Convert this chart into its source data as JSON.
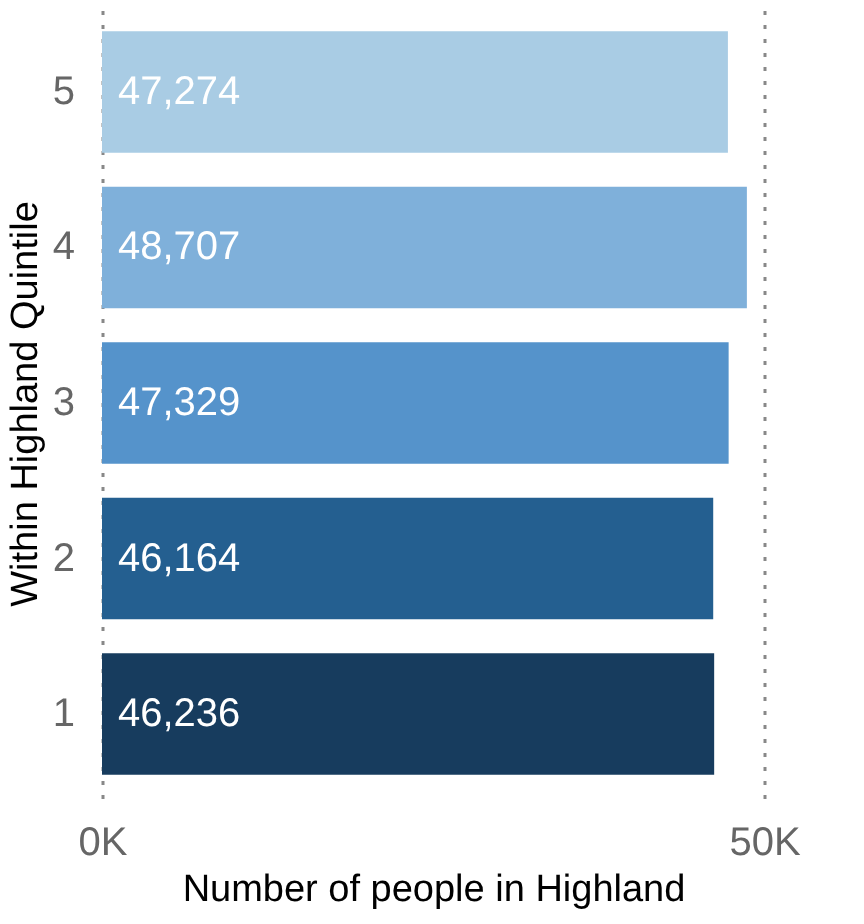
{
  "chart_data": {
    "type": "bar",
    "orientation": "horizontal",
    "categories": [
      "5",
      "4",
      "3",
      "2",
      "1"
    ],
    "values": [
      47274,
      48707,
      47329,
      46164,
      46236
    ],
    "colors": [
      "#a9cce4",
      "#7fb0da",
      "#5593cb",
      "#245f90",
      "#173c5e"
    ],
    "value_labels": [
      "47,274",
      "48,707",
      "47,329",
      "46,164",
      "46,236"
    ],
    "xlim": [
      0,
      50000
    ],
    "xticks": [
      {
        "value": 0,
        "label": "0K"
      },
      {
        "value": 50000,
        "label": "50K"
      }
    ],
    "xlabel": "Number of people in Highland",
    "ylabel": "Within Highland Quintile",
    "grid": "x"
  }
}
